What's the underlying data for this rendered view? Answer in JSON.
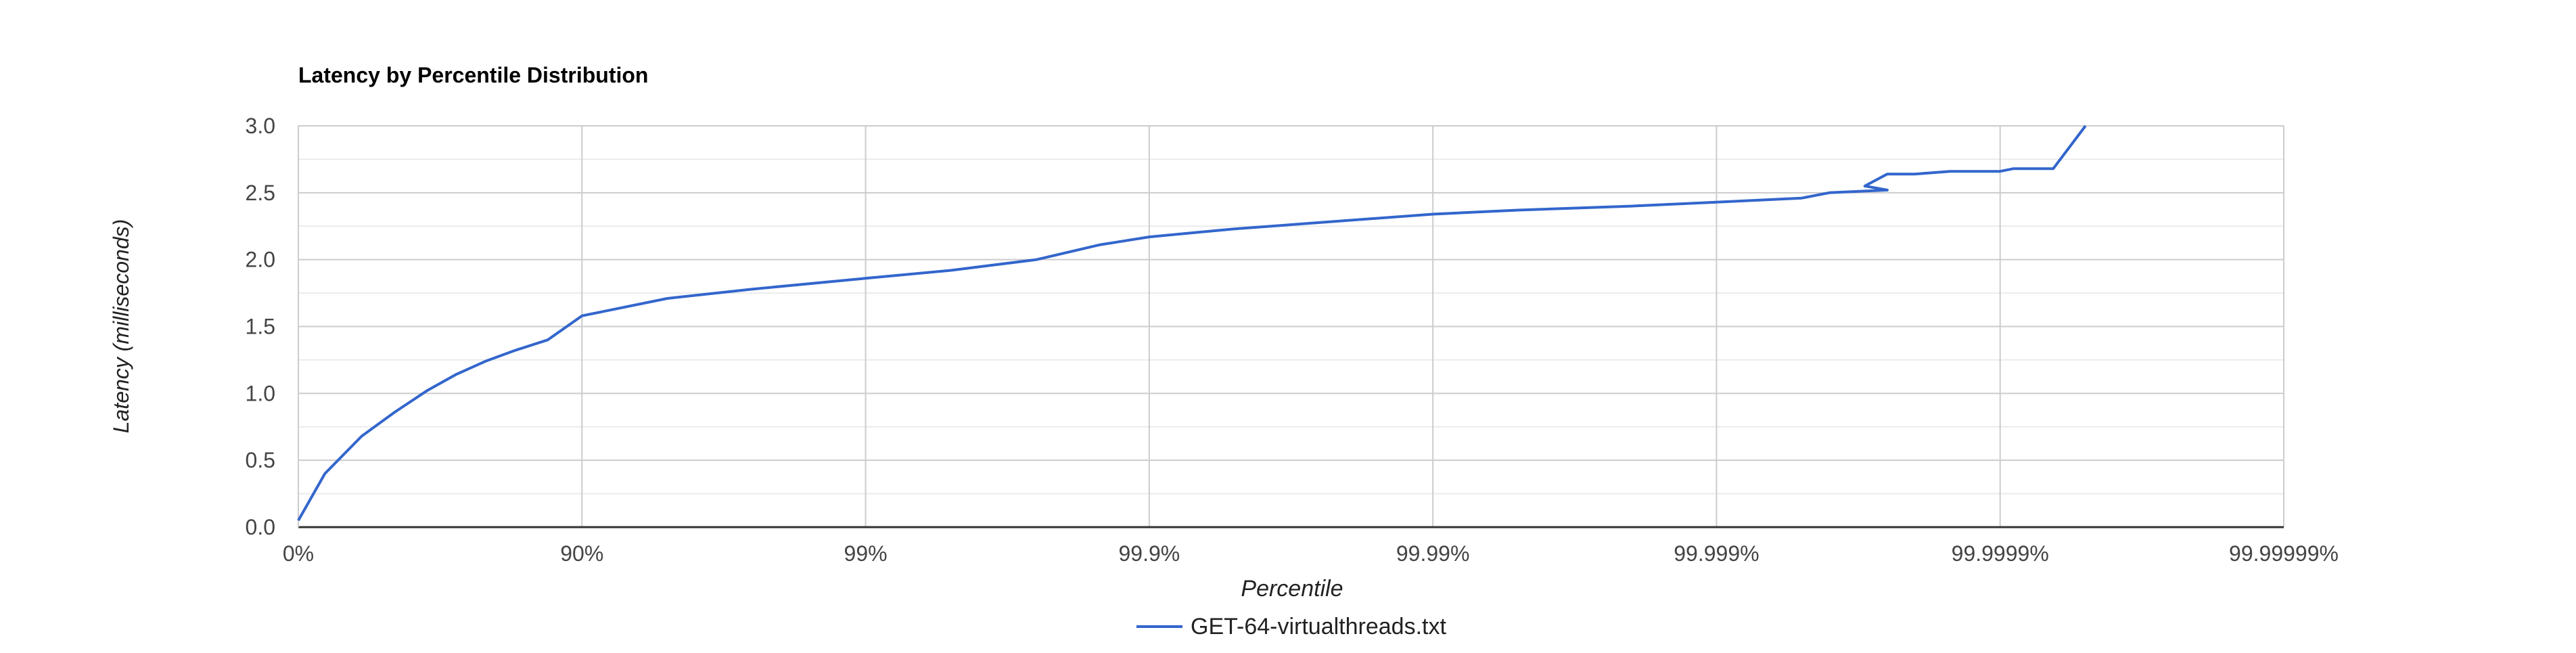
{
  "chart_data": {
    "type": "line",
    "title": "Latency by Percentile Distribution",
    "xlabel": "Percentile",
    "ylabel": "Latency (milliseconds)",
    "x_scale": "log-inverse-percentile",
    "x_ticks": [
      "0%",
      "90%",
      "99%",
      "99.9%",
      "99.99%",
      "99.999%",
      "99.9999%",
      "99.99999%"
    ],
    "y_ticks": [
      "0.0",
      "0.5",
      "1.0",
      "1.5",
      "2.0",
      "2.5",
      "3.0"
    ],
    "ylim": [
      0,
      3
    ],
    "grid": true,
    "legend_position": "bottom",
    "colors": {
      "series": "#3366cc",
      "grid_major": "#cccccc",
      "grid_minor": "#ebebeb",
      "axis": "#333333",
      "text": "#222222",
      "tick_text": "#444444"
    },
    "series": [
      {
        "name": "GET-64-virtualthreads.txt",
        "points": [
          {
            "x": "0%",
            "y": 0.05
          },
          {
            "x": "19.4%",
            "y": 0.4
          },
          {
            "x": "40.2%",
            "y": 0.68
          },
          {
            "x": "54.3%",
            "y": 0.86
          },
          {
            "x": "64.8%",
            "y": 1.02
          },
          {
            "x": "72.1%",
            "y": 1.14
          },
          {
            "x": "78.1%",
            "y": 1.24
          },
          {
            "x": "82.7%",
            "y": 1.32
          },
          {
            "x": "86.8%",
            "y": 1.4
          },
          {
            "x": "90%",
            "y": 1.58
          },
          {
            "x": "95%",
            "y": 1.71
          },
          {
            "x": "97.5%",
            "y": 1.78
          },
          {
            "x": "99%",
            "y": 1.86
          },
          {
            "x": "99.5%",
            "y": 1.92
          },
          {
            "x": "99.75%",
            "y": 2.0
          },
          {
            "x": "99.85%",
            "y": 2.11
          },
          {
            "x": "99.9%",
            "y": 2.17
          },
          {
            "x": "99.95%",
            "y": 2.23
          },
          {
            "x": "99.99%",
            "y": 2.34
          },
          {
            "x": "99.995%",
            "y": 2.37
          },
          {
            "x": "99.998%",
            "y": 2.4
          },
          {
            "x": "99.999%",
            "y": 2.43
          },
          {
            "x": "99.9995%",
            "y": 2.46
          },
          {
            "x": "99.9996%",
            "y": 2.5
          },
          {
            "x": "99.99975%",
            "y": 2.52
          },
          {
            "x": "99.9997%",
            "y": 2.55
          },
          {
            "x": "99.99975%",
            "y": 2.64
          },
          {
            "x": "99.9998%",
            "y": 2.64
          },
          {
            "x": "99.99985%",
            "y": 2.66
          },
          {
            "x": "99.9999%",
            "y": 2.66
          },
          {
            "x": "99.99991%",
            "y": 2.68
          },
          {
            "x": "99.99993%",
            "y": 2.68
          },
          {
            "x": "99.999935%",
            "y": 2.68
          },
          {
            "x": "99.99995%",
            "y": 3.0
          }
        ]
      }
    ]
  }
}
